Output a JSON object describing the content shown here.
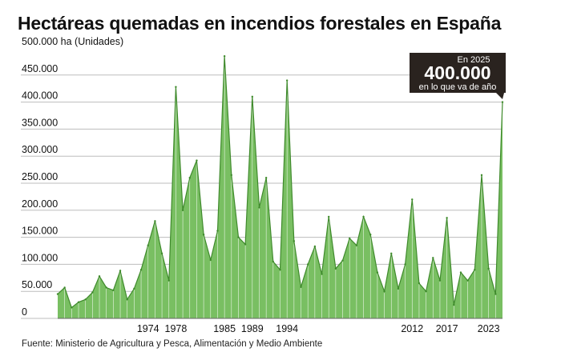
{
  "title": "Hectáreas quemadas en incendios forestales en España",
  "source": "Fuente: Ministerio de Agricultura y Pesca, Alimentación y Medio Ambiente",
  "colors": {
    "area": "#79bf62",
    "area_stroke": "#3f8a2c",
    "callout": "#2a231f"
  },
  "callout": {
    "line1": "En 2025",
    "line2": "400.000",
    "line3": "en lo que va de año"
  },
  "chart_data": {
    "type": "area",
    "title": "Hectáreas quemadas en incendios forestales en España",
    "ylabel": "500.000 ha (Unidades)",
    "ylim": [
      0,
      500000
    ],
    "yticks": [
      {
        "value": 0,
        "label": "0"
      },
      {
        "value": 50000,
        "label": "50.000"
      },
      {
        "value": 100000,
        "label": "100.000"
      },
      {
        "value": 150000,
        "label": "150.000"
      },
      {
        "value": 200000,
        "label": "200.000"
      },
      {
        "value": 250000,
        "label": "250.000"
      },
      {
        "value": 300000,
        "label": "300.000"
      },
      {
        "value": 350000,
        "label": "350.000"
      },
      {
        "value": 400000,
        "label": "400.000"
      },
      {
        "value": 450000,
        "label": "450.000"
      }
    ],
    "xticks": [
      1974,
      1978,
      1985,
      1989,
      1994,
      2012,
      2017,
      2023
    ],
    "xlim": [
      1961,
      2025
    ],
    "x": [
      1961,
      1962,
      1963,
      1964,
      1965,
      1966,
      1967,
      1968,
      1969,
      1970,
      1971,
      1972,
      1973,
      1974,
      1975,
      1976,
      1977,
      1978,
      1979,
      1980,
      1981,
      1982,
      1983,
      1984,
      1985,
      1986,
      1987,
      1988,
      1989,
      1990,
      1991,
      1992,
      1993,
      1994,
      1995,
      1996,
      1997,
      1998,
      1999,
      2000,
      2001,
      2002,
      2003,
      2004,
      2005,
      2006,
      2007,
      2008,
      2009,
      2010,
      2011,
      2012,
      2013,
      2014,
      2015,
      2016,
      2017,
      2018,
      2019,
      2020,
      2021,
      2022,
      2023,
      2024,
      2025
    ],
    "values": [
      45000,
      57000,
      20000,
      30000,
      35000,
      48000,
      78000,
      57000,
      52000,
      88000,
      35000,
      55000,
      90000,
      135000,
      180000,
      120000,
      70000,
      428000,
      200000,
      260000,
      292000,
      155000,
      108000,
      162000,
      485000,
      265000,
      150000,
      137000,
      410000,
      205000,
      260000,
      105000,
      90000,
      440000,
      143000,
      58000,
      100000,
      133000,
      82000,
      188000,
      92000,
      107000,
      148000,
      135000,
      188000,
      155000,
      85000,
      50000,
      120000,
      55000,
      100000,
      220000,
      65000,
      50000,
      112000,
      70000,
      186000,
      25000,
      85000,
      70000,
      90000,
      265000,
      92000,
      45000,
      400000
    ]
  }
}
